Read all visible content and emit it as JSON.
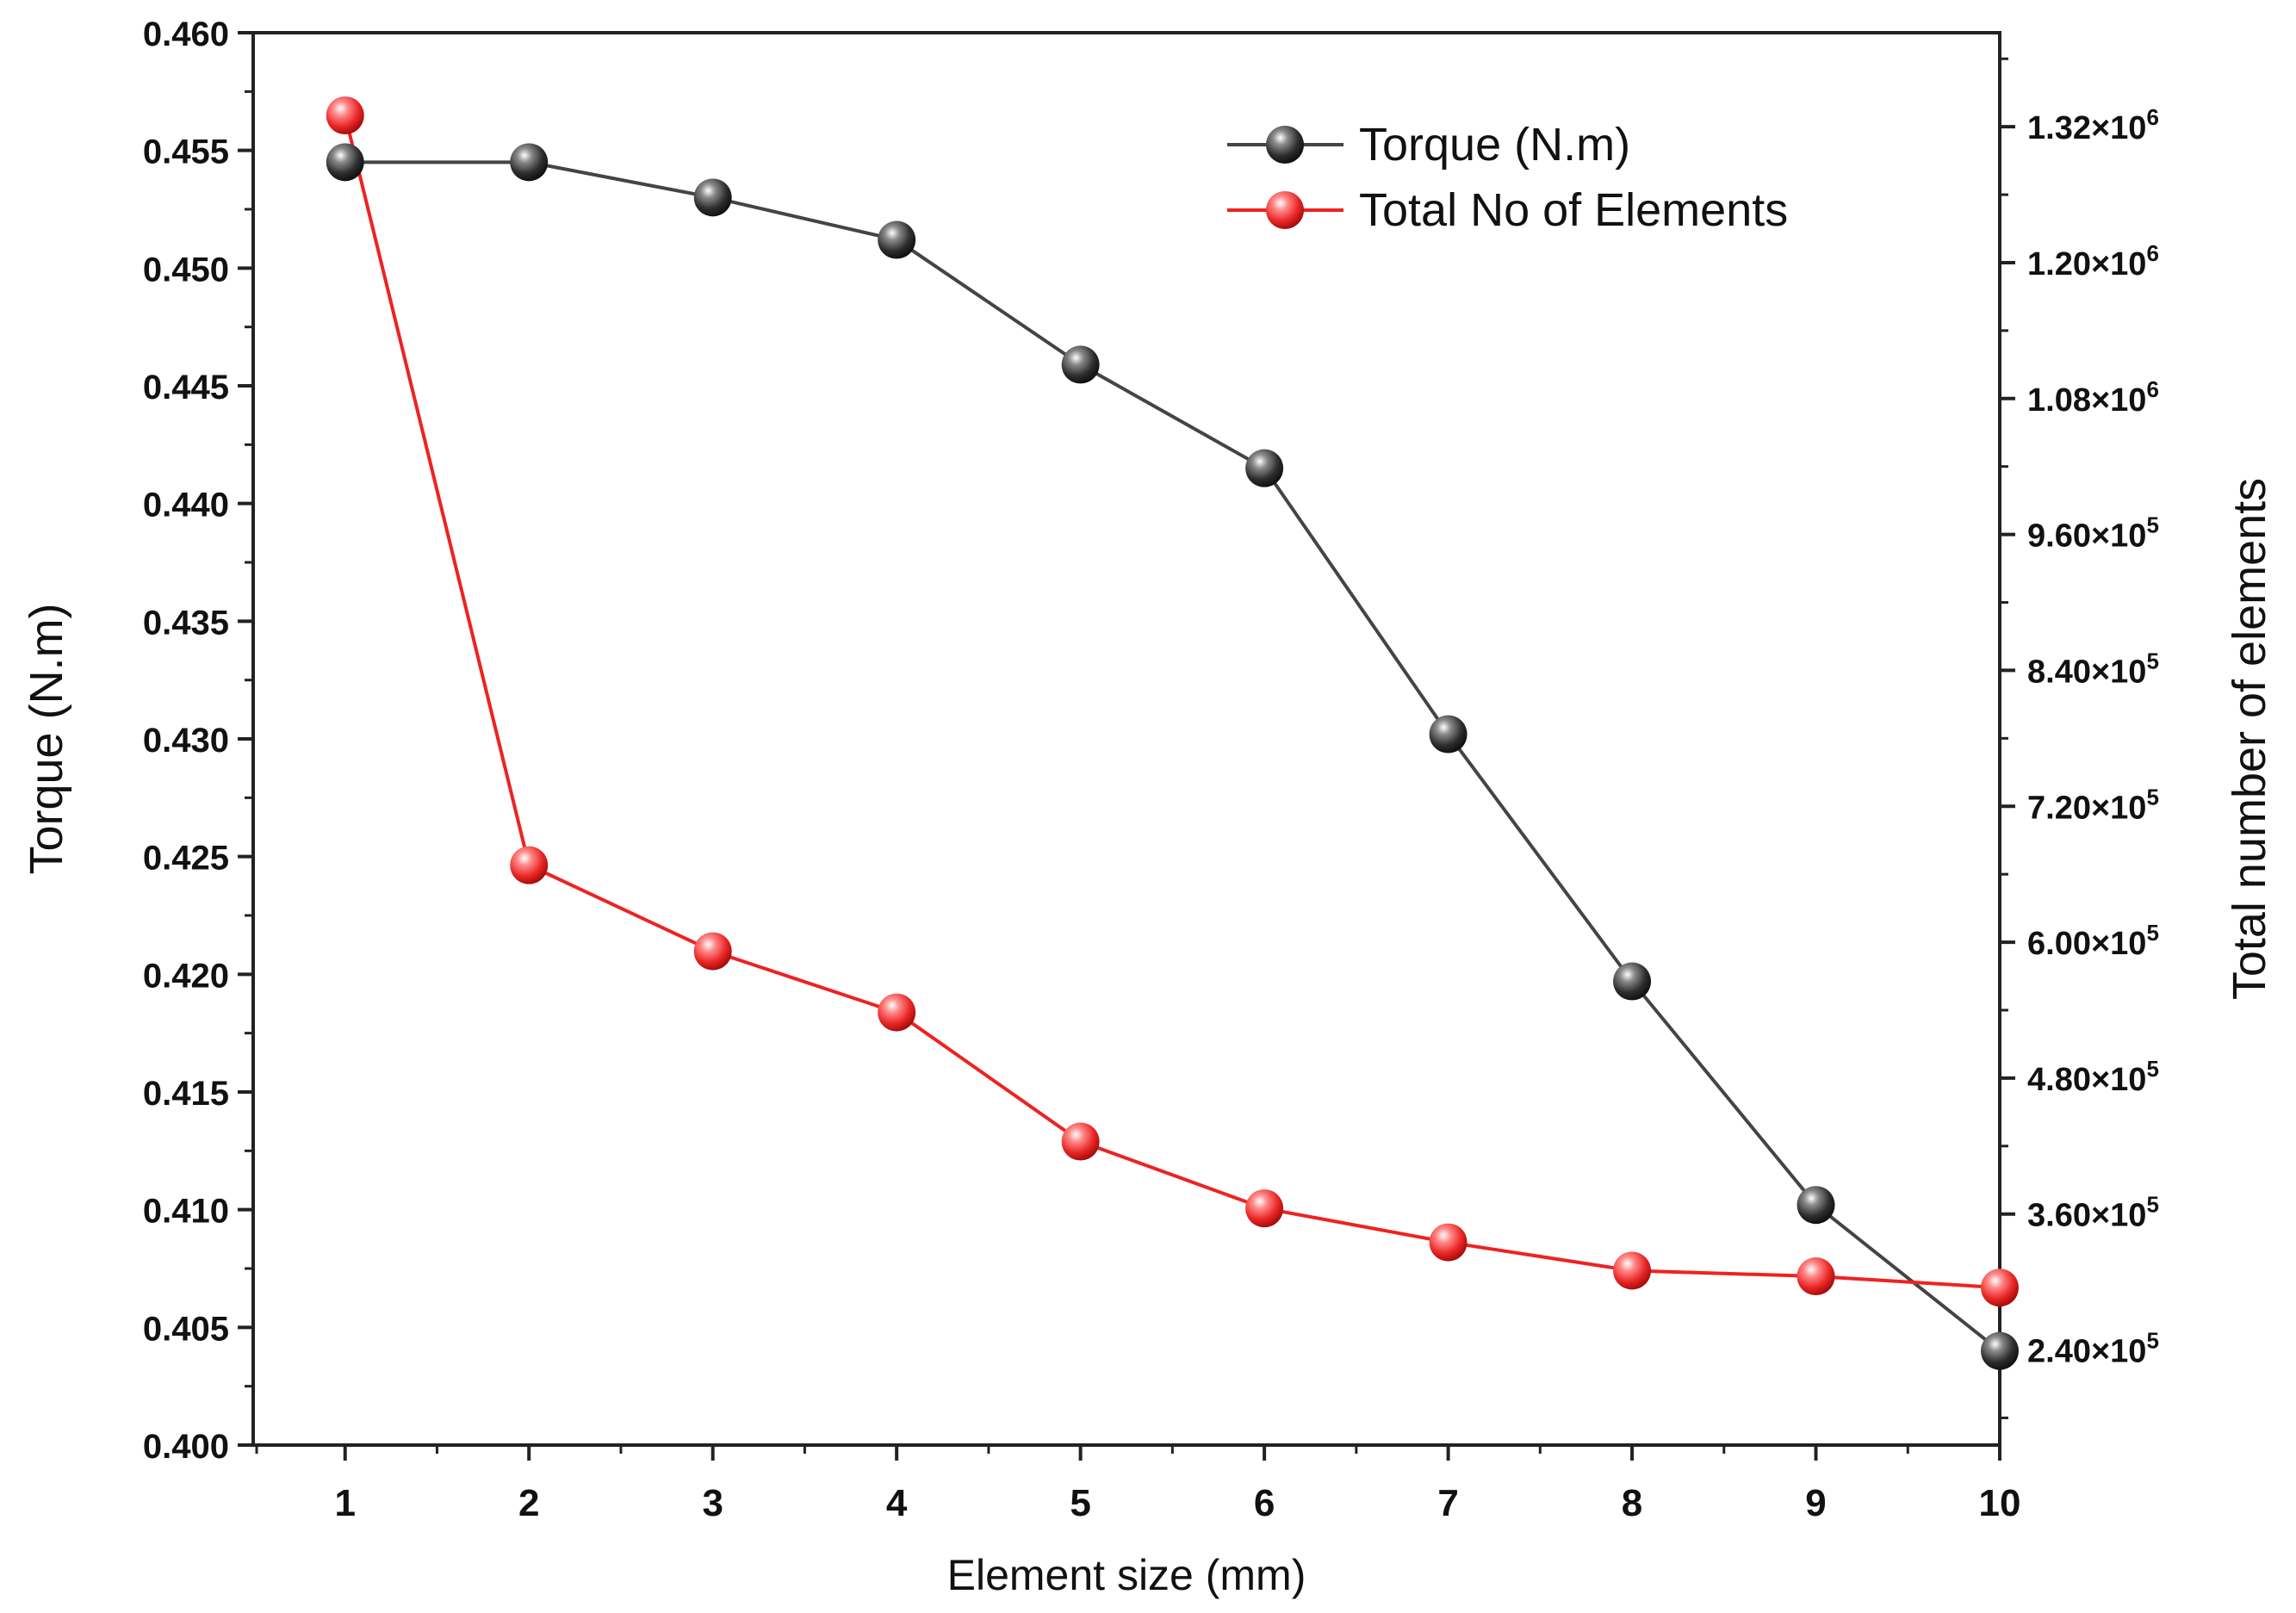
{
  "chart_data": {
    "type": "line",
    "x": [
      1,
      2,
      3,
      4,
      5,
      6,
      7,
      8,
      9,
      10
    ],
    "xlabel": "Element size (mm)",
    "xlim": [
      0.5,
      10
    ],
    "xticks": [
      1,
      2,
      3,
      4,
      5,
      6,
      7,
      8,
      9,
      10
    ],
    "left_axis": {
      "label": "Torque (N.m)",
      "ylim": [
        0.4,
        0.46
      ],
      "ticks": [
        "0.400",
        "0.405",
        "0.410",
        "0.415",
        "0.420",
        "0.425",
        "0.430",
        "0.435",
        "0.440",
        "0.445",
        "0.450",
        "0.455",
        "0.460"
      ]
    },
    "right_axis": {
      "label": "Total number of elements",
      "ylim": [
        156000,
        1403000
      ],
      "ticks": [
        {
          "value": 240000,
          "mantissa": "2.40",
          "exponent": "5"
        },
        {
          "value": 360000,
          "mantissa": "3.60",
          "exponent": "5"
        },
        {
          "value": 480000,
          "mantissa": "4.80",
          "exponent": "5"
        },
        {
          "value": 600000,
          "mantissa": "6.00",
          "exponent": "5"
        },
        {
          "value": 720000,
          "mantissa": "7.20",
          "exponent": "5"
        },
        {
          "value": 840000,
          "mantissa": "8.40",
          "exponent": "5"
        },
        {
          "value": 960000,
          "mantissa": "9.60",
          "exponent": "5"
        },
        {
          "value": 1080000,
          "mantissa": "1.08",
          "exponent": "6"
        },
        {
          "value": 1200000,
          "mantissa": "1.20",
          "exponent": "6"
        },
        {
          "value": 1320000,
          "mantissa": "1.32",
          "exponent": "6"
        }
      ]
    },
    "series": [
      {
        "name": "Torque (N.m)",
        "axis": "left",
        "color": "#444444",
        "marker_color": "#333333",
        "values": [
          0.4545,
          0.4545,
          0.453,
          0.4512,
          0.4459,
          0.4415,
          0.4302,
          0.4197,
          0.4102,
          0.404
        ]
      },
      {
        "name": "Total No of Elements",
        "axis": "right",
        "color": "#ee2222",
        "marker_color": "#e83030",
        "values": [
          1330000,
          668000,
          592000,
          538000,
          424000,
          365000,
          335000,
          310000,
          305000,
          295000
        ]
      }
    ],
    "legend": {
      "position": "top-right",
      "entries": [
        "Torque (N.m)",
        "Total No of Elements"
      ]
    }
  }
}
